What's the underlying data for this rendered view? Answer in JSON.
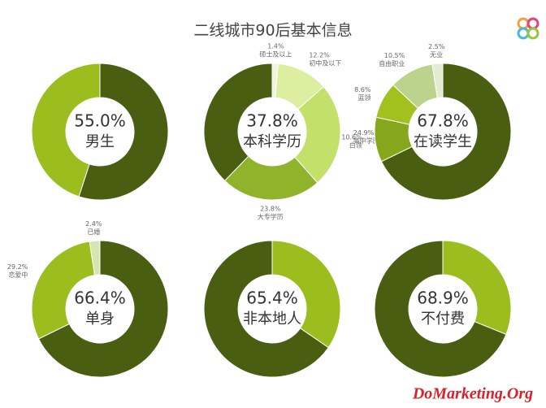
{
  "title": "二线城市90后基本信息",
  "watermark": "DoMarketing.Org",
  "chart_data": [
    {
      "type": "pie",
      "categories": [
        "男生",
        null
      ],
      "values": [
        55.0,
        45.0
      ],
      "value_labels": [
        "55.0%",
        null
      ],
      "colors": [
        "#4a5e12",
        "#9bbd1e"
      ]
    },
    {
      "type": "pie",
      "categories": [
        "硕士及以上",
        "初中及以下",
        "高中学历",
        "大专学历",
        "本科学历"
      ],
      "values": [
        1.4,
        12.2,
        24.9,
        23.8,
        37.8
      ],
      "value_labels": [
        "1.4%",
        "12.2%",
        "24.9%",
        "23.8%",
        "37.8%"
      ],
      "colors": [
        "#eef5dc",
        "#dcefa0",
        "#c3e06a",
        "#8fb32a",
        "#4a5e12"
      ]
    },
    {
      "type": "pie",
      "categories": [
        "在读学生",
        "白领",
        "蓝领",
        "自由职业",
        "无业"
      ],
      "values": [
        67.8,
        10.6,
        8.6,
        10.5,
        2.5
      ],
      "value_labels": [
        "67.8%",
        "10.6%",
        "8.6%",
        "10.5%",
        "2.5%"
      ],
      "colors": [
        "#4a5e12",
        "#86a61c",
        "#a2c11f",
        "#bcd38e",
        "#e3ecd0"
      ]
    },
    {
      "type": "pie",
      "categories": [
        "单身",
        "恋爱中",
        "已婚"
      ],
      "values": [
        66.4,
        29.2,
        2.4
      ],
      "value_labels": [
        "66.4%",
        "29.2%",
        "2.4%"
      ],
      "colors": [
        "#4a5e12",
        "#9bbd1e",
        "#d5e6b0"
      ]
    },
    {
      "type": "pie",
      "categories": [
        null,
        "非本地人"
      ],
      "values": [
        34.6,
        65.4
      ],
      "value_labels": [
        null,
        "65.4%"
      ],
      "colors": [
        "#9bbd1e",
        "#4a5e12"
      ]
    },
    {
      "type": "pie",
      "categories": [
        null,
        "不付费"
      ],
      "values": [
        31.1,
        68.9
      ],
      "value_labels": [
        null,
        "68.9%"
      ],
      "colors": [
        "#9bbd1e",
        "#4a5e12"
      ]
    }
  ]
}
